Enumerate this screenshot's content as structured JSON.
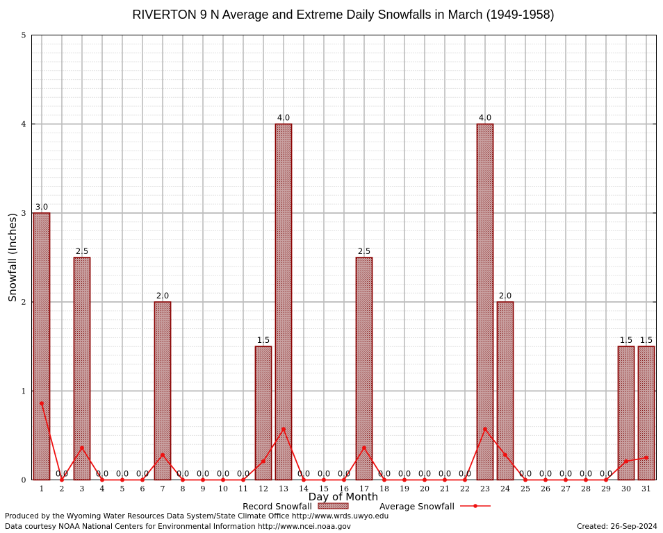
{
  "chart_data": {
    "type": "bar",
    "title": "RIVERTON 9 N Average and Extreme Daily Snowfalls in March (1949-1958)",
    "xlabel": "Day of Month",
    "ylabel": "Snowfall (Inches)",
    "ylim": [
      0,
      5
    ],
    "yticks": [
      "0",
      "1",
      "2",
      "3",
      "4",
      "5"
    ],
    "categories": [
      "1",
      "2",
      "3",
      "4",
      "5",
      "6",
      "7",
      "8",
      "9",
      "10",
      "11",
      "12",
      "13",
      "14",
      "15",
      "16",
      "17",
      "18",
      "19",
      "20",
      "21",
      "22",
      "23",
      "24",
      "25",
      "26",
      "27",
      "28",
      "29",
      "30",
      "31"
    ],
    "series": [
      {
        "name": "Record Snowfall",
        "type": "bar",
        "color": "#8b0000",
        "values": [
          3.0,
          0.0,
          2.5,
          0.0,
          0.0,
          0.0,
          2.0,
          0.0,
          0.0,
          0.0,
          0.0,
          1.5,
          4.0,
          0.0,
          0.0,
          0.0,
          2.5,
          0.0,
          0.0,
          0.0,
          0.0,
          0.0,
          4.0,
          2.0,
          0.0,
          0.0,
          0.0,
          0.0,
          0.0,
          1.5,
          1.5
        ],
        "labels": [
          "3.0",
          "0.0",
          "2.5",
          "0.0",
          "0.0",
          "0.0",
          "2.0",
          "0.0",
          "0.0",
          "0.0",
          "0.0",
          "1.5",
          "4.0",
          "0.0",
          "0.0",
          "0.0",
          "2.5",
          "0.0",
          "0.0",
          "0.0",
          "0.0",
          "0.0",
          "4.0",
          "2.0",
          "0.0",
          "0.0",
          "0.0",
          "0.0",
          "0.0",
          "1.5",
          "1.5"
        ]
      },
      {
        "name": "Average Snowfall",
        "type": "line",
        "color": "#ee1111",
        "values": [
          0.86,
          0.0,
          0.36,
          0.0,
          0.0,
          0.0,
          0.28,
          0.0,
          0.0,
          0.0,
          0.0,
          0.21,
          0.57,
          0.0,
          0.0,
          0.0,
          0.36,
          0.0,
          0.0,
          0.0,
          0.0,
          0.0,
          0.57,
          0.28,
          0.0,
          0.0,
          0.0,
          0.0,
          0.0,
          0.21,
          0.25
        ]
      }
    ],
    "grid": true,
    "legend": "bottom-center"
  },
  "footer": {
    "produced_by": "Produced by the Wyoming Water Resources Data System/State Climate Office http://www.wrds.uwyo.edu",
    "courtesy": "Data courtesy NOAA National Centers for Environmental Information http://www.ncei.noaa.gov",
    "created": "Created:  26-Sep-2024"
  }
}
